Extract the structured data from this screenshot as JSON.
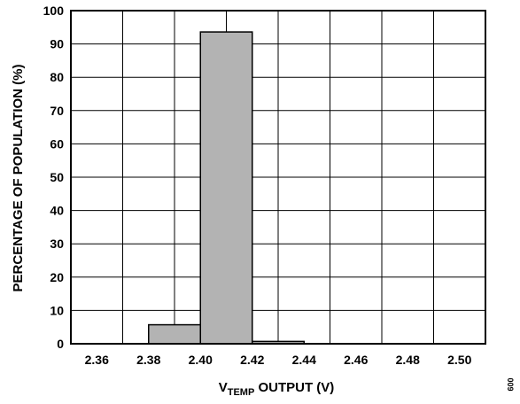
{
  "chart_data": {
    "type": "bar",
    "categories": [
      "2.36",
      "2.38",
      "2.40",
      "2.42",
      "2.44",
      "2.46",
      "2.48",
      "2.50"
    ],
    "values": [
      0,
      0,
      5.7,
      93.6,
      0.7,
      0,
      0,
      0
    ],
    "bar_positions": [
      2.39,
      2.41,
      2.43
    ],
    "bar_values": [
      5.7,
      93.6,
      0.7
    ],
    "bar_width": 0.02,
    "xlim": [
      2.35,
      2.51
    ],
    "ylim": [
      0,
      100
    ],
    "yticks": [
      "0",
      "10",
      "20",
      "30",
      "40",
      "50",
      "60",
      "70",
      "80",
      "90",
      "100"
    ],
    "xlabel_main": "V",
    "xlabel_sub": "TEMP",
    "xlabel_rest": " OUTPUT (V)",
    "ylabel": "PERCENTAGE OF POPULATION (%)",
    "figure_id": "009",
    "grid": true,
    "bar_color": "#b3b3b3"
  }
}
